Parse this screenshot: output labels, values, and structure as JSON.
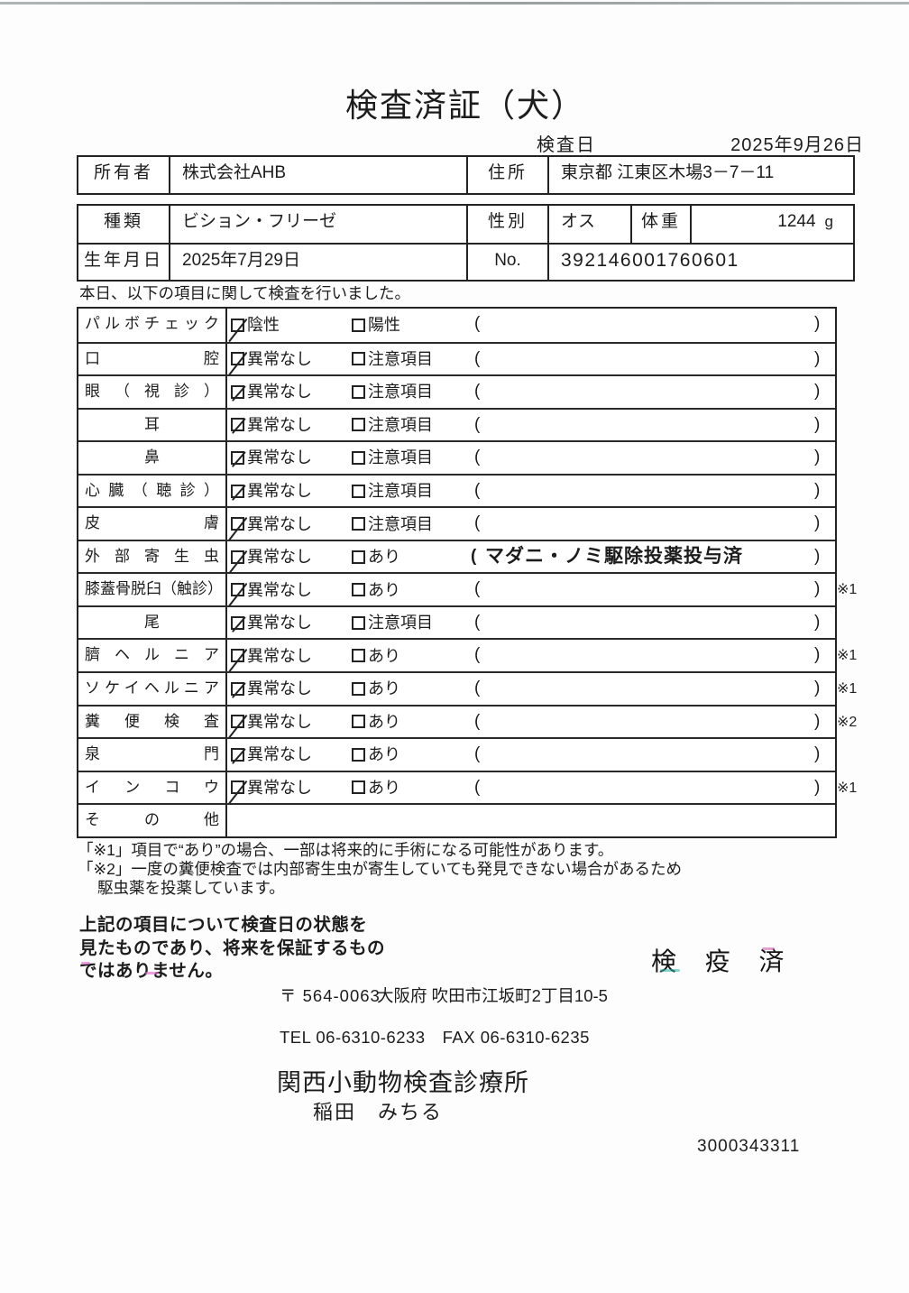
{
  "page": {
    "title": "検査済証（犬）",
    "serial_number": "3000343311"
  },
  "header": {
    "inspection_date_label": "検査日",
    "inspection_date_value": "2025年9月26日",
    "owner_label": "所有者",
    "owner_value": "株式会社AHB",
    "address_label": "住所",
    "address_value": "東京都 江東区木場3－7－11",
    "breed_label": "種類",
    "breed_value": "ビション・フリーゼ",
    "sex_label": "性別",
    "sex_value": "オス",
    "weight_label": "体重",
    "weight_value": "1244",
    "weight_unit": "g",
    "birth_label": "生年月日",
    "birth_value": "2025年7月29日",
    "no_label": "No.",
    "no_value": "392146001760601"
  },
  "intro": "本日、以下の項目に関して検査を行いました。",
  "inspection_table": {
    "rows": [
      {
        "label": "パルボチェック",
        "opt1": "陰性",
        "opt1_checked": true,
        "check_style": "long",
        "opt2": "陽性",
        "opt2_checked": false,
        "has_options": true,
        "has_paren": true,
        "paren_content": "",
        "note": ""
      },
      {
        "label": "口腔",
        "opt1": "異常なし",
        "opt1_checked": true,
        "check_style": "long",
        "opt2": "注意項目",
        "opt2_checked": false,
        "has_options": true,
        "has_paren": true,
        "paren_content": "",
        "note": ""
      },
      {
        "label": "眼（視診）",
        "opt1": "異常なし",
        "opt1_checked": true,
        "check_style": "short",
        "opt2": "注意項目",
        "opt2_checked": false,
        "has_options": true,
        "has_paren": true,
        "paren_content": "",
        "note": ""
      },
      {
        "label": "耳",
        "opt1": "異常なし",
        "opt1_checked": true,
        "check_style": "short",
        "opt2": "注意項目",
        "opt2_checked": false,
        "has_options": true,
        "has_paren": true,
        "paren_content": "",
        "note": ""
      },
      {
        "label": "鼻",
        "opt1": "異常なし",
        "opt1_checked": true,
        "check_style": "short",
        "opt2": "注意項目",
        "opt2_checked": false,
        "has_options": true,
        "has_paren": true,
        "paren_content": "",
        "note": ""
      },
      {
        "label": "心臓（聴診）",
        "opt1": "異常なし",
        "opt1_checked": true,
        "check_style": "short",
        "opt2": "注意項目",
        "opt2_checked": false,
        "has_options": true,
        "has_paren": true,
        "paren_content": "",
        "note": ""
      },
      {
        "label": "皮膚",
        "opt1": "異常なし",
        "opt1_checked": true,
        "check_style": "long",
        "opt2": "注意項目",
        "opt2_checked": false,
        "has_options": true,
        "has_paren": true,
        "paren_content": "",
        "note": ""
      },
      {
        "label": "外部寄生虫",
        "opt1": "異常なし",
        "opt1_checked": true,
        "check_style": "long",
        "opt2": "あり",
        "opt2_checked": false,
        "has_options": true,
        "has_paren": true,
        "paren_content": "マダニ・ノミ駆除投薬投与済",
        "note": ""
      },
      {
        "label": "膝蓋骨脱臼（触診）",
        "opt1": "異常なし",
        "opt1_checked": true,
        "check_style": "long",
        "opt2": "あり",
        "opt2_checked": false,
        "has_options": true,
        "has_paren": true,
        "paren_content": "",
        "note": "※1"
      },
      {
        "label": "尾",
        "opt1": "異常なし",
        "opt1_checked": true,
        "check_style": "short",
        "opt2": "注意項目",
        "opt2_checked": false,
        "has_options": true,
        "has_paren": true,
        "paren_content": "",
        "note": ""
      },
      {
        "label": "臍ヘルニア",
        "opt1": "異常なし",
        "opt1_checked": true,
        "check_style": "long",
        "opt2": "あり",
        "opt2_checked": false,
        "has_options": true,
        "has_paren": true,
        "paren_content": "",
        "note": "※1"
      },
      {
        "label": "ソケイヘルニア",
        "opt1": "異常なし",
        "opt1_checked": true,
        "check_style": "short",
        "opt2": "あり",
        "opt2_checked": false,
        "has_options": true,
        "has_paren": true,
        "paren_content": "",
        "note": "※1"
      },
      {
        "label": "糞便検査",
        "opt1": "異常なし",
        "opt1_checked": true,
        "check_style": "long",
        "opt2": "あり",
        "opt2_checked": false,
        "has_options": true,
        "has_paren": true,
        "paren_content": "",
        "note": "※2"
      },
      {
        "label": "泉門",
        "opt1": "異常なし",
        "opt1_checked": true,
        "check_style": "short",
        "opt2": "あり",
        "opt2_checked": false,
        "has_options": true,
        "has_paren": true,
        "paren_content": "",
        "note": ""
      },
      {
        "label": "インコウ",
        "opt1": "異常なし",
        "opt1_checked": true,
        "check_style": "long",
        "opt2": "あり",
        "opt2_checked": false,
        "has_options": true,
        "has_paren": true,
        "paren_content": "",
        "note": "※1"
      },
      {
        "label": "その他",
        "opt1": "",
        "opt1_checked": false,
        "check_style": "",
        "opt2": "",
        "opt2_checked": false,
        "has_options": false,
        "has_paren": false,
        "paren_content": "",
        "note": ""
      }
    ]
  },
  "footnotes": [
    "「※1」項目で“あり”の場合、一部は将来的に手術になる可能性があります。",
    "「※2」一度の糞便検査では内部寄生虫が寄生していても発見できない場合があるため",
    "駆虫薬を投薬しています。"
  ],
  "statement": [
    "上記の項目について検査日の状態を",
    "見たものであり、将来を保証するもの",
    "ではありません。"
  ],
  "stamp": "検 疫 済",
  "footer": {
    "postal": "〒 564-0063",
    "address": "大阪府 吹田市江坂町2丁目10-5",
    "tel_fax": "TEL 06-6310-6233　FAX 06-6310-6235",
    "clinic": "関西小動物検査診療所",
    "veterinarian": "稲田　みちる"
  }
}
